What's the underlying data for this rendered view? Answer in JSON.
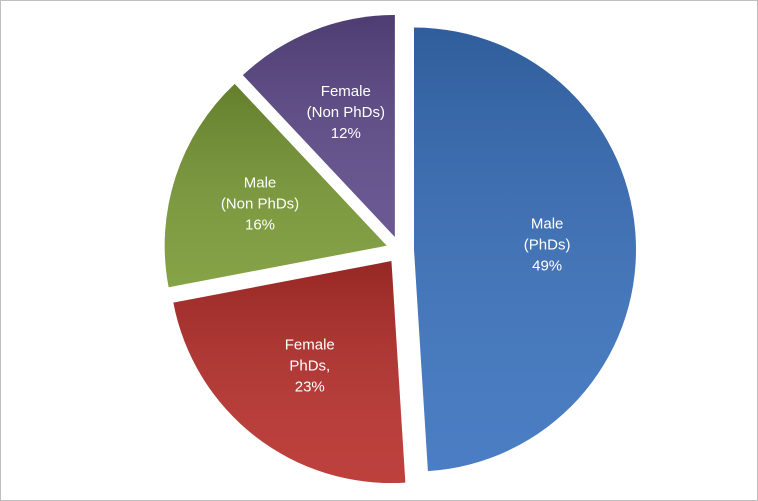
{
  "chart_data": {
    "type": "pie",
    "categories": [
      [
        "Male",
        "(PhDs)"
      ],
      [
        "Female",
        "PhDs,"
      ],
      [
        "Male",
        "(Non PhDs)"
      ],
      [
        "Female",
        "(Non PhDs)"
      ]
    ],
    "values": [
      49,
      23,
      16,
      12
    ],
    "value_labels": [
      "49%",
      "23%",
      "16%",
      "12%"
    ],
    "colors": [
      "#3a72be",
      "#b8302c",
      "#7a9a36",
      "#5e4a8a"
    ],
    "exploded": true
  }
}
